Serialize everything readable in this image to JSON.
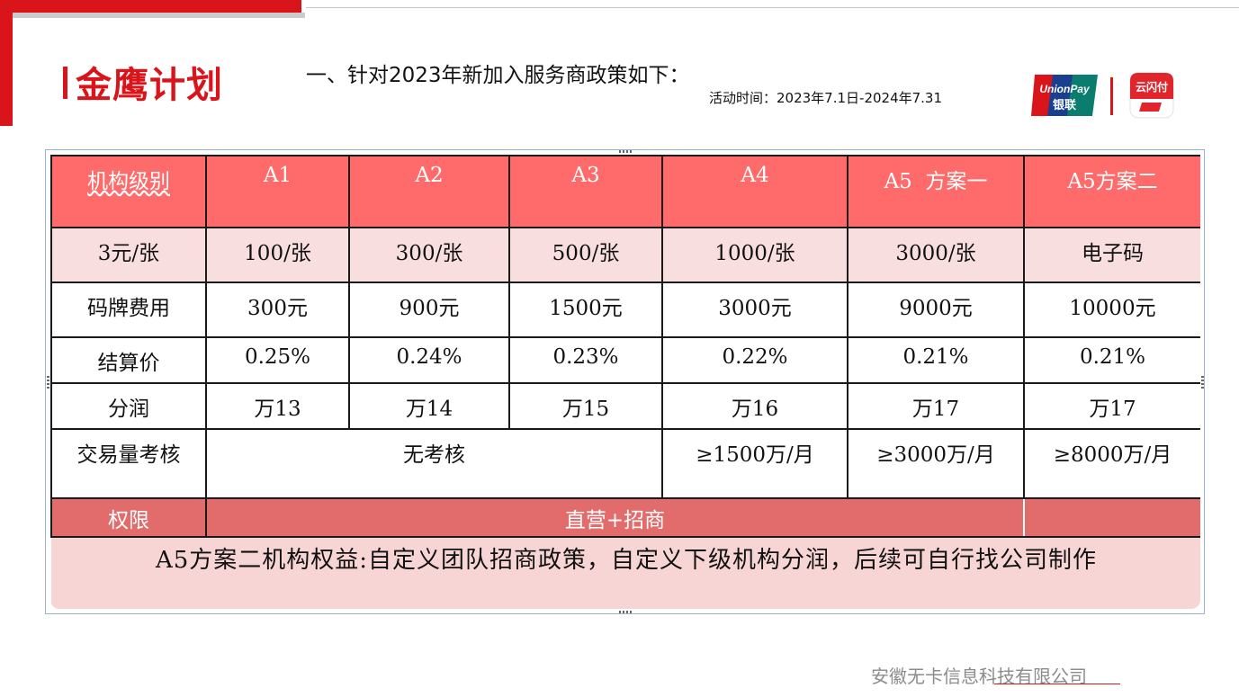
{
  "brand": {
    "title": "金鹰计划",
    "accent": "#d9151b"
  },
  "heading": "一、针对2023年新加入服务商政策如下：",
  "period": "活动时间：2023年7.1日-2024年7.31",
  "logos": {
    "unionpay_line1": "UnionPay",
    "unionpay_line2": "银联",
    "cloudpay": "云闪付"
  },
  "table": {
    "header": [
      "机构级别",
      "A1",
      "A2",
      "A3",
      "A4",
      "A5  方案一",
      "A5方案二"
    ],
    "rows": {
      "price": [
        "3元/张",
        "100/张",
        "300/张",
        "500/张",
        "1000/张",
        "3000/张",
        "电子码"
      ],
      "fee": [
        "码牌费用",
        "300元",
        "900元",
        "1500元",
        "3000元",
        "9000元",
        "10000元"
      ],
      "settle": [
        "结算价",
        "0.25%",
        "0.24%",
        "0.23%",
        "0.22%",
        "0.21%",
        "0.21%"
      ],
      "share": [
        "分润",
        "万13",
        "万14",
        "万15",
        "万16",
        "万17",
        "万17"
      ],
      "volume": [
        "交易量考核",
        "无考核",
        "≥1500万/月",
        "≥3000万/月",
        "≥8000万/月"
      ],
      "permission": [
        "权限",
        "直营+招商",
        ""
      ]
    },
    "note": "A5方案二机构权益:自定义团队招商政策，自定义下级机构分润，后续可自行找公司制作",
    "colors": {
      "header_bg": "#ff6b6b",
      "price_bg": "#f8dede",
      "perm_bg": "#e26b6b",
      "note_bg": "#f7d5d5"
    }
  },
  "footer": {
    "company": "安徽无卡信息科技有限公司"
  }
}
